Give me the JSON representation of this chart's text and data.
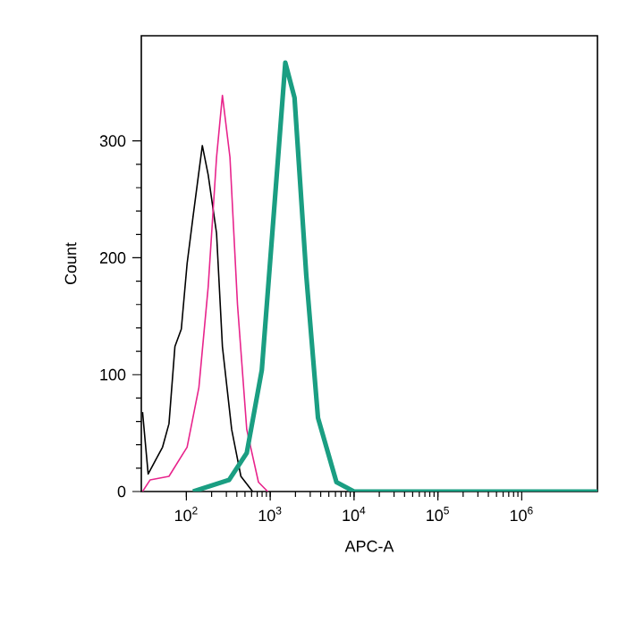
{
  "chart_data": {
    "type": "line",
    "xlabel": "APC-A",
    "ylabel": "Count",
    "log": "x",
    "xlim": [
      29,
      8000000
    ],
    "ylim": [
      0,
      390
    ],
    "xticks": [
      {
        "value": 100,
        "label": "10$^{2}$"
      },
      {
        "value": 1000,
        "label": "10$^{3}$"
      },
      {
        "value": 10000,
        "label": "10$^{4}$"
      },
      {
        "value": 100000,
        "label": "10$^{5}$"
      },
      {
        "value": 1000000,
        "label": "10$^{6}$"
      }
    ],
    "yticks": [
      0,
      100,
      200,
      300
    ],
    "grid": false,
    "legend": false,
    "marker": "none",
    "line_style": "solid",
    "series": [
      {
        "color": "#000000",
        "x": [
          30,
          35,
          52,
          62,
          73,
          87,
          102,
          120,
          155,
          182,
          229,
          269,
          347,
          447,
          617
        ],
        "values": [
          68,
          15,
          38,
          58,
          124,
          139,
          195,
          235,
          296,
          271,
          221,
          124,
          53,
          13,
          0
        ]
      },
      {
        "color": "#e8248c",
        "x": [
          30,
          37,
          62,
          102,
          141,
          182,
          229,
          269,
          331,
          407,
          525,
          724,
          933
        ],
        "values": [
          0,
          10,
          13,
          38,
          89,
          175,
          286,
          339,
          286,
          160,
          53,
          8,
          0
        ]
      },
      {
        "color": "#1a9e82",
        "x": [
          120,
          324,
          525,
          794,
          1096,
          1514,
          1950,
          2692,
          3715,
          6166,
          10000,
          8000000
        ],
        "values": [
          0,
          10,
          33,
          104,
          235,
          367,
          337,
          185,
          63,
          8,
          0,
          0
        ]
      }
    ]
  }
}
